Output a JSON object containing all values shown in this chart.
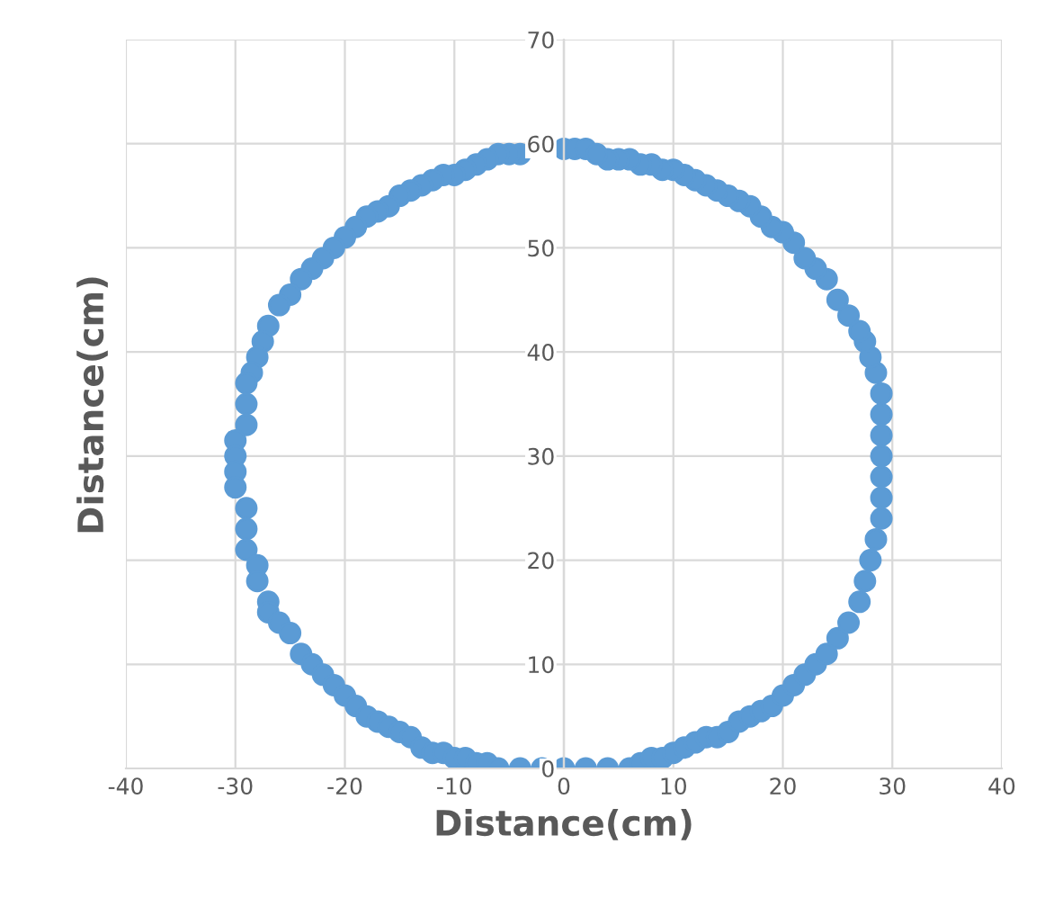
{
  "chart_data": {
    "type": "scatter",
    "xlabel": "Distance(cm)",
    "ylabel": "Distance(cm)",
    "xlim": [
      -40,
      40
    ],
    "ylim": [
      0,
      70
    ],
    "xticks": [
      -40,
      -30,
      -20,
      -10,
      0,
      10,
      20,
      30,
      40
    ],
    "yticks": [
      0,
      10,
      20,
      30,
      40,
      50,
      60,
      70
    ],
    "grid": true,
    "marker": "circle",
    "series": [
      {
        "color": "#5b9bd5",
        "x": [
          0,
          1,
          2,
          -4,
          -5,
          -6,
          -7,
          -8,
          -9,
          -10,
          -11,
          -12,
          -13,
          -14,
          -15,
          -16,
          -17,
          -18,
          -19,
          -20,
          -21,
          -22,
          -23,
          -24,
          -25,
          -26,
          -27,
          -27.5,
          -28,
          -28.5,
          -29,
          -29,
          -29,
          -30,
          -30,
          -30,
          -30,
          -29,
          -29,
          -29,
          -28,
          -28,
          -27,
          -27,
          -26,
          -25,
          -24,
          -23,
          -22,
          -21,
          -20,
          -19,
          -18,
          -17,
          -16,
          -15,
          -14,
          -13,
          -12,
          -11,
          -10,
          -9,
          -8,
          -7,
          -6,
          -4,
          -2,
          0,
          2,
          4,
          6,
          7,
          8,
          9,
          10,
          11,
          12,
          13,
          14,
          15,
          16,
          17,
          18,
          19,
          20,
          21,
          22,
          23,
          24,
          25,
          26,
          27,
          27.5,
          28,
          28.5,
          29,
          29,
          29,
          29,
          29,
          29,
          29,
          28.5,
          28,
          27.5,
          27,
          26,
          25,
          24,
          23,
          22,
          21,
          20,
          19,
          18,
          17,
          16,
          15,
          14,
          13,
          12,
          11,
          10,
          9,
          8,
          7,
          6,
          5,
          4,
          3
        ],
        "values": [
          59.5,
          59.5,
          59.5,
          59,
          59,
          59,
          58.5,
          58,
          57.5,
          57,
          57,
          56.5,
          56,
          55.5,
          55,
          54,
          53.5,
          53,
          52,
          51,
          50,
          49,
          48,
          47,
          45.5,
          44.5,
          42.5,
          41,
          39.5,
          38,
          37,
          35,
          33,
          31.5,
          30,
          28.5,
          27,
          25,
          23,
          21,
          19.5,
          18,
          16,
          15,
          14,
          13,
          11,
          10,
          9,
          8,
          7,
          6,
          5,
          4.5,
          4,
          3.5,
          3,
          2,
          1.5,
          1.5,
          1,
          1,
          0.5,
          0.5,
          0,
          0,
          0,
          0,
          0,
          0,
          0,
          0.5,
          1,
          1,
          1.5,
          2,
          2.5,
          3,
          3,
          3.5,
          4.5,
          5,
          5.5,
          6,
          7,
          8,
          9,
          10,
          11,
          12.5,
          14,
          16,
          18,
          20,
          22,
          24,
          26,
          28,
          30,
          32,
          34,
          36,
          38,
          39.5,
          41,
          42,
          43.5,
          45,
          47,
          48,
          49,
          50.5,
          51.5,
          52,
          53,
          54,
          54.5,
          55,
          55.5,
          56,
          56.5,
          57,
          57.5,
          57.5,
          58,
          58,
          58.5,
          58.5,
          58.5,
          59
        ]
      }
    ]
  }
}
